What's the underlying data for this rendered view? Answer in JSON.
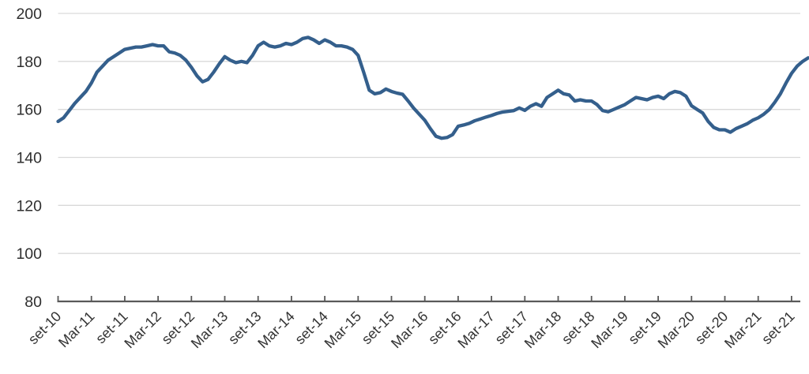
{
  "chart": {
    "title": "",
    "legend": "none"
  },
  "chart_data": {
    "type": "line",
    "title": "",
    "xlabel": "",
    "ylabel": "",
    "x_tick_labels": [
      "set-10",
      "Mar-11",
      "set-11",
      "Mar-12",
      "set-12",
      "Mar-13",
      "set-13",
      "Mar-14",
      "set-14",
      "Mar-15",
      "set-15",
      "Mar-16",
      "set-16",
      "Mar-17",
      "set-17",
      "Mar-18",
      "set-18",
      "Mar-19",
      "set-19",
      "Mar-20",
      "set-20",
      "Mar-21",
      "set-21"
    ],
    "months_per_tick": 6,
    "x_start_month": "set-10",
    "x_end_month": "dic-21",
    "y_ticks": [
      200,
      180,
      160,
      140,
      120,
      100,
      80
    ],
    "ylim": [
      80,
      200
    ],
    "grid": "horizontal-only",
    "legend_position": "none",
    "series": [
      {
        "name": "index-series",
        "color": "#345F8C",
        "values": [
          155,
          156.5,
          159.5,
          162.5,
          165,
          167.5,
          171,
          175.5,
          178,
          180.5,
          182,
          183.5,
          185,
          185.5,
          186,
          186,
          186.5,
          187,
          186.5,
          186.5,
          184,
          183.5,
          182.5,
          180.5,
          177.5,
          174,
          171.5,
          172.5,
          175.5,
          179,
          182,
          180.5,
          179.5,
          180,
          179.5,
          182.5,
          186.5,
          188,
          186.5,
          186,
          186.5,
          187.5,
          187,
          188,
          189.5,
          190,
          189,
          187.5,
          189,
          188,
          186.5,
          186.5,
          186,
          185,
          182.5,
          175.5,
          168,
          166.5,
          167,
          168.5,
          167.5,
          166.8,
          166.3,
          163.5,
          160.5,
          158,
          155.5,
          152,
          148.8,
          148,
          148.3,
          149.5,
          153,
          153.5,
          154.2,
          155.3,
          156,
          156.8,
          157.5,
          158.3,
          158.9,
          159.2,
          159.5,
          160.6,
          159.6,
          161.3,
          162.4,
          161.3,
          165,
          166.5,
          168,
          166.5,
          166,
          163.5,
          164,
          163.5,
          163.5,
          162,
          159.5,
          159,
          160,
          161,
          162,
          163.5,
          165,
          164.5,
          164,
          165,
          165.5,
          164.5,
          166.5,
          167.5,
          167,
          165.5,
          161.5,
          160,
          158.5,
          155,
          152.5,
          151.5,
          151.5,
          150.5,
          152,
          153,
          154,
          155.5,
          156.5,
          158,
          160,
          163,
          166.5,
          171,
          175,
          178,
          180,
          181.5
        ]
      }
    ],
    "colors": {
      "line": "#345F8C",
      "gridline": "#d9d9d9",
      "axis": "#595959",
      "tick_label": "#333333"
    }
  }
}
